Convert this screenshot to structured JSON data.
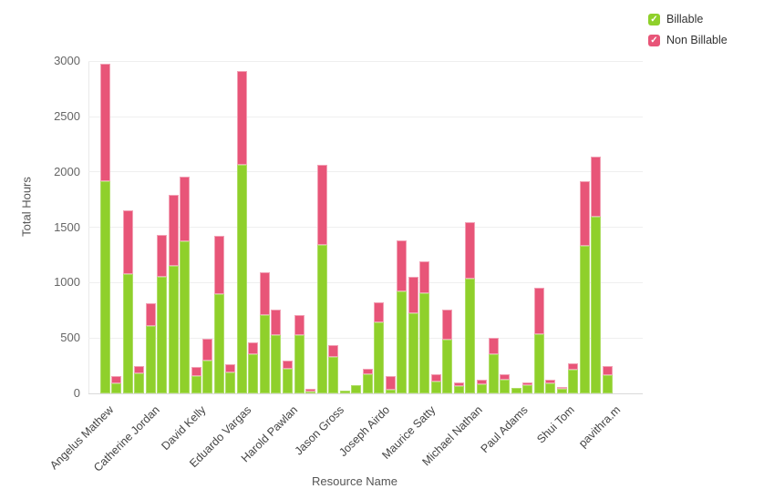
{
  "chart_data": {
    "type": "bar",
    "stacked": true,
    "xlabel": "Resource Name",
    "ylabel": "Total Hours",
    "ylim": [
      0,
      3000
    ],
    "yticks": [
      0,
      500,
      1000,
      1500,
      2000,
      2500,
      3000
    ],
    "grid": true,
    "legend_position": "top-right",
    "legend": [
      {
        "label": "Billable",
        "color": "#8fd02b",
        "checked": true
      },
      {
        "label": "Non Billable",
        "color": "#e85578",
        "checked": true
      }
    ],
    "groups": [
      {
        "name": "Angelus Mathew",
        "bars": [
          {
            "billable": 1920,
            "non_billable": 1055
          },
          {
            "billable": 90,
            "non_billable": 65
          },
          {
            "billable": 1075,
            "non_billable": 575
          }
        ]
      },
      {
        "name": "Catherine Jordan",
        "bars": [
          {
            "billable": 180,
            "non_billable": 65
          },
          {
            "billable": 610,
            "non_billable": 205
          },
          {
            "billable": 1050,
            "non_billable": 385
          },
          {
            "billable": 1150,
            "non_billable": 640
          }
        ]
      },
      {
        "name": "David Kelly",
        "bars": [
          {
            "billable": 1370,
            "non_billable": 590
          },
          {
            "billable": 160,
            "non_billable": 75
          },
          {
            "billable": 295,
            "non_billable": 195
          },
          {
            "billable": 900,
            "non_billable": 520
          }
        ]
      },
      {
        "name": "Eduardo Vargas",
        "bars": [
          {
            "billable": 190,
            "non_billable": 70
          },
          {
            "billable": 2065,
            "non_billable": 845
          },
          {
            "billable": 355,
            "non_billable": 105
          },
          {
            "billable": 710,
            "non_billable": 385
          }
        ]
      },
      {
        "name": "Harold Pawlan",
        "bars": [
          {
            "billable": 530,
            "non_billable": 230
          },
          {
            "billable": 220,
            "non_billable": 80
          },
          {
            "billable": 525,
            "non_billable": 180
          },
          {
            "billable": 15,
            "non_billable": 25
          }
        ]
      },
      {
        "name": "Jason Gross",
        "bars": [
          {
            "billable": 1340,
            "non_billable": 725
          },
          {
            "billable": 330,
            "non_billable": 110
          },
          {
            "billable": 22,
            "non_billable": 0
          },
          {
            "billable": 75,
            "non_billable": 0
          }
        ]
      },
      {
        "name": "Joseph Airdo",
        "bars": [
          {
            "billable": 175,
            "non_billable": 50
          },
          {
            "billable": 640,
            "non_billable": 180
          },
          {
            "billable": 30,
            "non_billable": 125
          },
          {
            "billable": 920,
            "non_billable": 465
          }
        ]
      },
      {
        "name": "Maurice Satty",
        "bars": [
          {
            "billable": 720,
            "non_billable": 335
          },
          {
            "billable": 905,
            "non_billable": 290
          },
          {
            "billable": 105,
            "non_billable": 70
          },
          {
            "billable": 485,
            "non_billable": 270
          }
        ]
      },
      {
        "name": "Michael Nathan",
        "bars": [
          {
            "billable": 65,
            "non_billable": 35
          },
          {
            "billable": 1035,
            "non_billable": 515
          },
          {
            "billable": 80,
            "non_billable": 40
          },
          {
            "billable": 350,
            "non_billable": 150
          }
        ]
      },
      {
        "name": "Paul Adams",
        "bars": [
          {
            "billable": 125,
            "non_billable": 45
          },
          {
            "billable": 50,
            "non_billable": 0
          },
          {
            "billable": 70,
            "non_billable": 30
          },
          {
            "billable": 535,
            "non_billable": 420
          }
        ]
      },
      {
        "name": "Shui Tom",
        "bars": [
          {
            "billable": 90,
            "non_billable": 30
          },
          {
            "billable": 40,
            "non_billable": 15
          },
          {
            "billable": 215,
            "non_billable": 55
          },
          {
            "billable": 1330,
            "non_billable": 590
          }
        ]
      },
      {
        "name": "pavithra.m",
        "bars": [
          {
            "billable": 1595,
            "non_billable": 545
          },
          {
            "billable": 165,
            "non_billable": 85
          }
        ]
      }
    ],
    "legend_check_glyph": "✓"
  }
}
